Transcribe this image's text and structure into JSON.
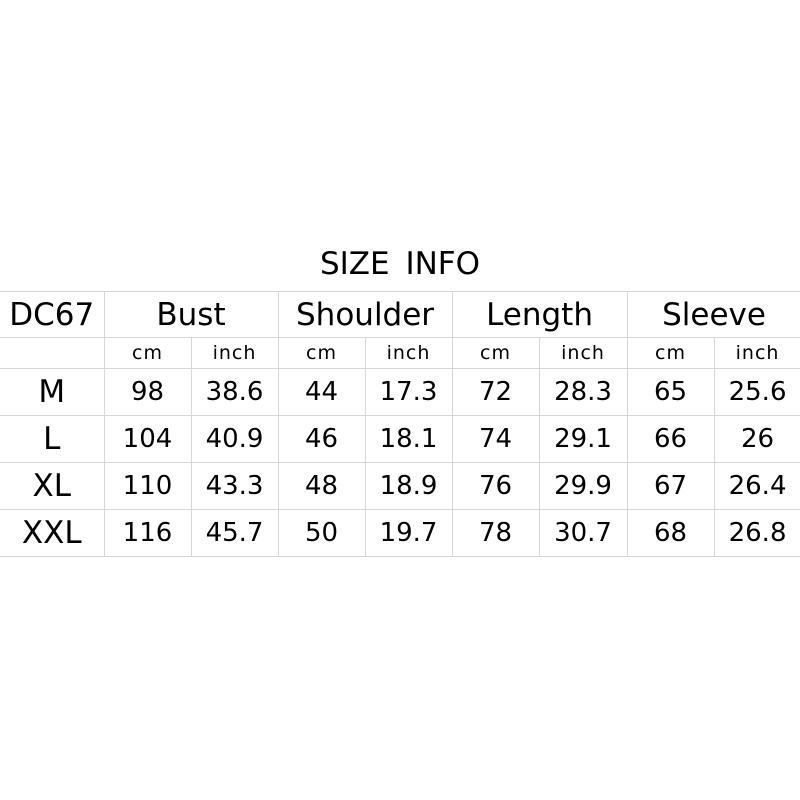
{
  "title": "SIZE INFO",
  "model": "DC67",
  "groups": [
    "Bust",
    "Shoulder",
    "Length",
    "Sleeve"
  ],
  "units": [
    "cm",
    "inch",
    "cm",
    "inch",
    "cm",
    "inch",
    "cm",
    "inch"
  ],
  "rows": [
    {
      "size": "M",
      "values": [
        "98",
        "38.6",
        "44",
        "17.3",
        "72",
        "28.3",
        "65",
        "25.6"
      ]
    },
    {
      "size": "L",
      "values": [
        "104",
        "40.9",
        "46",
        "18.1",
        "74",
        "29.1",
        "66",
        "26"
      ]
    },
    {
      "size": "XL",
      "values": [
        "110",
        "43.3",
        "48",
        "18.9",
        "76",
        "29.9",
        "67",
        "26.4"
      ]
    },
    {
      "size": "XXL",
      "values": [
        "116",
        "45.7",
        "50",
        "19.7",
        "78",
        "30.7",
        "68",
        "26.8"
      ]
    }
  ]
}
